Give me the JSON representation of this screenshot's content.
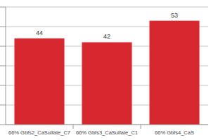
{
  "chart_data": {
    "type": "bar",
    "categories": [
      "66% Gbfs2_CaSulfate_C7",
      "66% Gbfs3_CaSulfate_C1",
      "66% Gbfs4_CaS"
    ],
    "values": [
      44,
      42,
      53
    ],
    "color": "#d7282f",
    "ylim": [
      0,
      60
    ],
    "yticks": [
      0,
      10,
      20,
      30,
      40,
      50,
      60
    ],
    "grid": true,
    "data_labels": true,
    "tick_labels": "x"
  }
}
